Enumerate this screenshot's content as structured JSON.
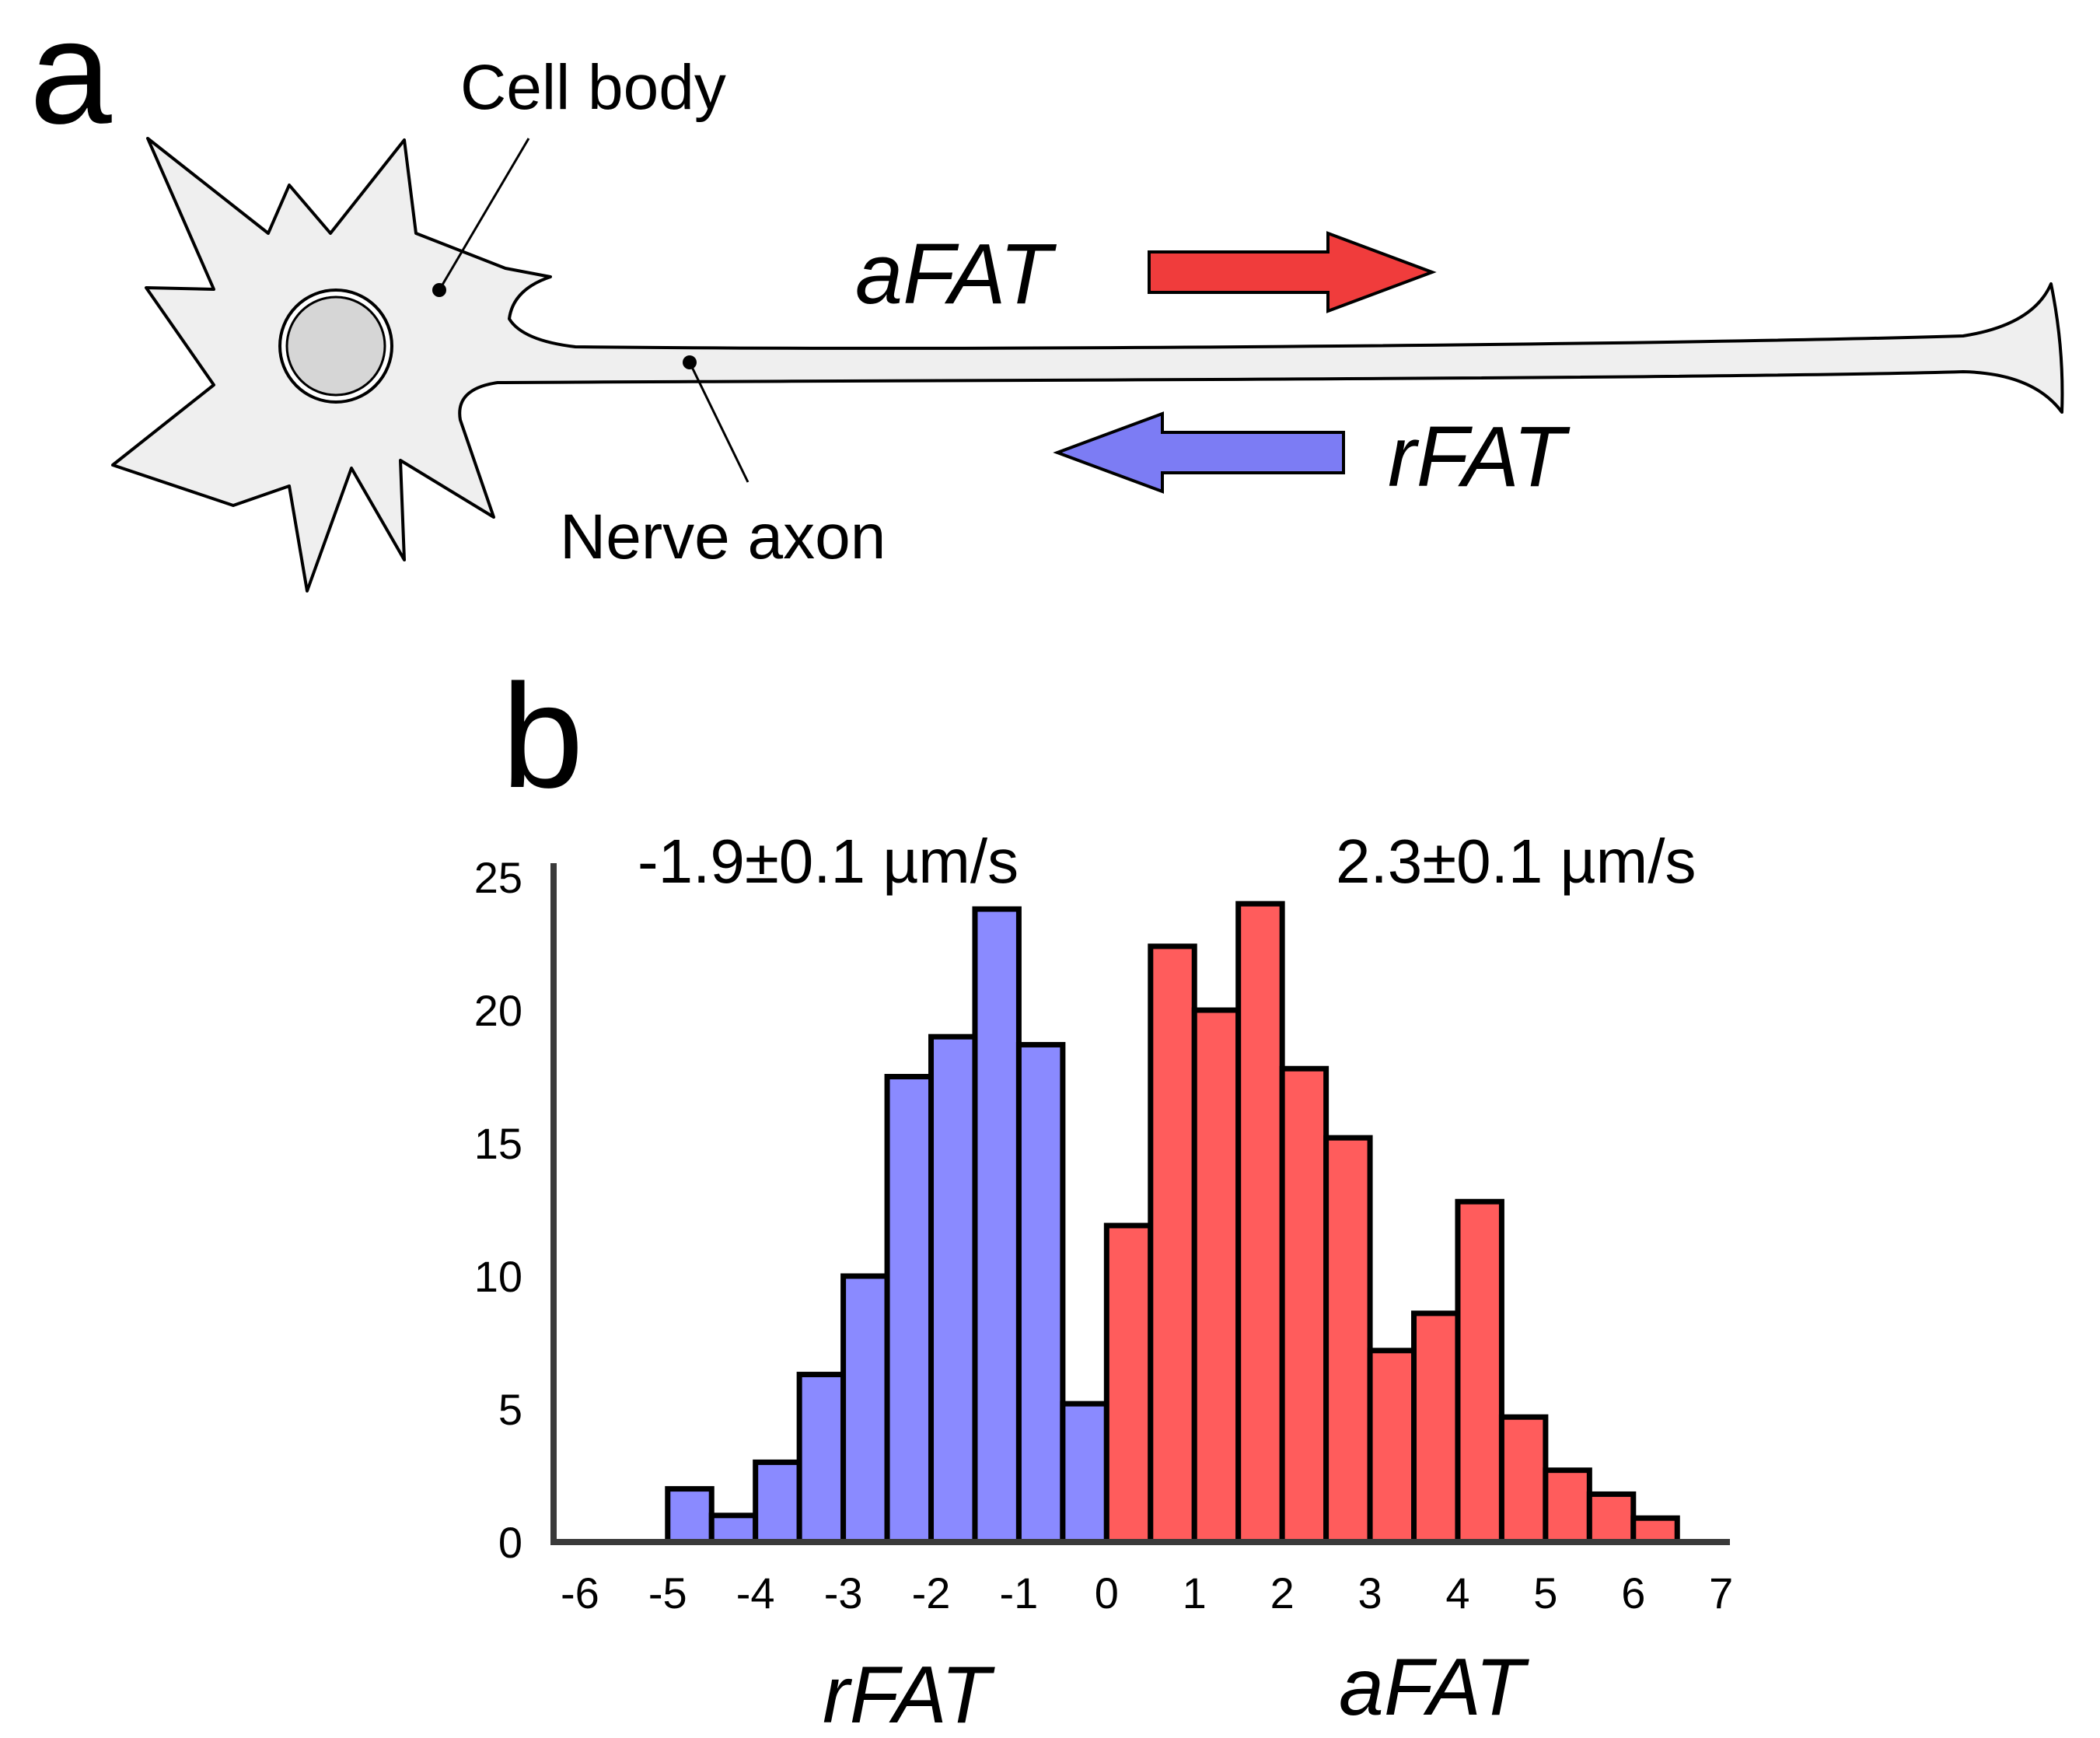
{
  "panel_a": {
    "letter": "a",
    "labels": {
      "cell_body": "Cell body",
      "nerve_axon": "Nerve axon",
      "afat": "aFAT",
      "rfat": "rFAT"
    },
    "colors": {
      "membrane_fill": "#efefef",
      "nucleus_fill": "#d6d6d6",
      "afat_arrow": "#f03c3c",
      "rfat_arrow": "#7c7cf4"
    }
  },
  "panel_b": {
    "letter": "b",
    "annotations": {
      "left_mean": "-1.9±0.1 µm/s",
      "right_mean": "2.3±0.1 µm/s"
    },
    "captions": {
      "left": "rFAT",
      "right": "aFAT"
    }
  },
  "chart_data": {
    "type": "bar",
    "title": "",
    "xlabel": "",
    "ylabel": "",
    "ylim": [
      0,
      25
    ],
    "yticks": [
      0,
      5,
      10,
      15,
      20,
      25
    ],
    "xticks": [
      -6,
      -5,
      -4,
      -3,
      -2,
      -1,
      0,
      1,
      2,
      3,
      4,
      5,
      6,
      7
    ],
    "grid": false,
    "legend": "none",
    "series": [
      {
        "color": "#8a8aff",
        "bins": [
          {
            "x0": -5.0,
            "x1": -4.5,
            "value": 2
          },
          {
            "x0": -4.5,
            "x1": -4.0,
            "value": 1
          },
          {
            "x0": -4.0,
            "x1": -3.5,
            "value": 3
          },
          {
            "x0": -3.5,
            "x1": -3.0,
            "value": 6.3
          },
          {
            "x0": -3.0,
            "x1": -2.5,
            "value": 10
          },
          {
            "x0": -2.5,
            "x1": -2.0,
            "value": 17.5
          },
          {
            "x0": -2.0,
            "x1": -1.5,
            "value": 19
          },
          {
            "x0": -1.5,
            "x1": -1.0,
            "value": 23.8
          },
          {
            "x0": -1.0,
            "x1": -0.5,
            "value": 18.7
          },
          {
            "x0": -0.5,
            "x1": 0.0,
            "value": 5.2
          }
        ]
      },
      {
        "color": "#ff5c5c",
        "bins": [
          {
            "x0": 0.0,
            "x1": 0.5,
            "value": 11.9
          },
          {
            "x0": 0.5,
            "x1": 1.0,
            "value": 22.4
          },
          {
            "x0": 1.0,
            "x1": 1.5,
            "value": 20
          },
          {
            "x0": 1.5,
            "x1": 2.0,
            "value": 24
          },
          {
            "x0": 2.0,
            "x1": 2.5,
            "value": 17.8
          },
          {
            "x0": 2.5,
            "x1": 3.0,
            "value": 15.2
          },
          {
            "x0": 3.0,
            "x1": 3.5,
            "value": 7.2
          },
          {
            "x0": 3.5,
            "x1": 4.0,
            "value": 8.6
          },
          {
            "x0": 4.0,
            "x1": 4.5,
            "value": 12.8
          },
          {
            "x0": 4.5,
            "x1": 5.0,
            "value": 4.7
          },
          {
            "x0": 5.0,
            "x1": 5.5,
            "value": 2.7
          },
          {
            "x0": 5.5,
            "x1": 6.0,
            "value": 1.8
          },
          {
            "x0": 6.0,
            "x1": 6.5,
            "value": 0.9
          }
        ]
      }
    ]
  }
}
